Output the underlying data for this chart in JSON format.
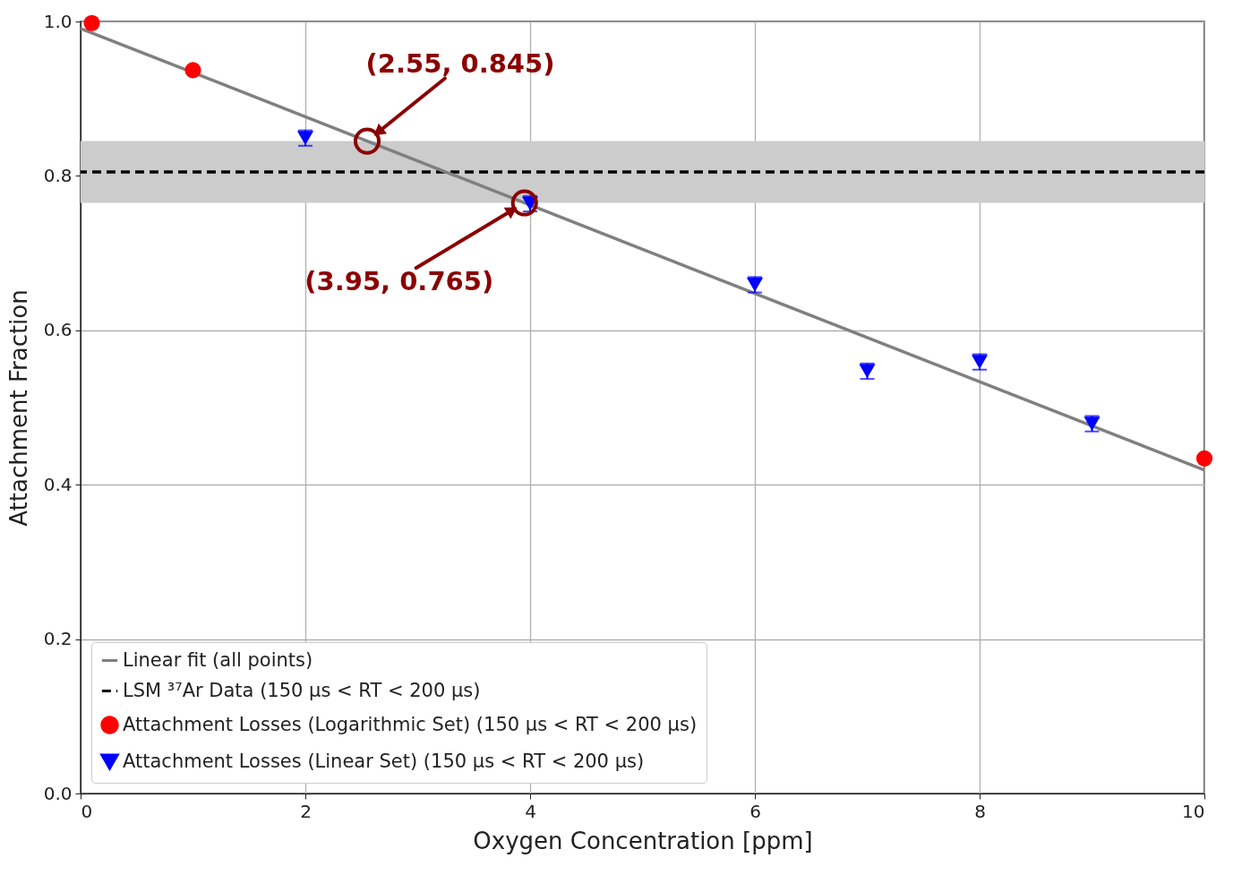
{
  "chart_data": {
    "type": "scatter",
    "xlabel": "Oxygen Concentration [ppm]",
    "ylabel": "Attachment Fraction",
    "series": [
      {
        "name": "Linear fit (all points)",
        "type": "line",
        "color": "#808080",
        "x": [
          0,
          10
        ],
        "values": [
          0.991,
          0.419
        ]
      },
      {
        "name": "Attachment Losses (Logarithmic Set) (150 µs < RT < 200 µs)",
        "marker": "circle",
        "color": "#ff0000",
        "x": [
          0.1,
          1,
          10
        ],
        "values": [
          0.998,
          0.937,
          0.434
        ]
      },
      {
        "name": "Attachment Losses (Linear Set) (150 µs < RT < 200 µs)",
        "marker": "triangle",
        "color": "#0000ff",
        "x": [
          2,
          4,
          6,
          7,
          8,
          9
        ],
        "values": [
          0.849,
          0.764,
          0.659,
          0.547,
          0.559,
          0.479
        ],
        "errors": [
          0.01,
          0.01,
          0.01,
          0.01,
          0.01,
          0.01
        ]
      }
    ],
    "ref_lines": [
      {
        "axis": "y",
        "value": 0.805,
        "label": "LSM ³⁷Ar Data (150 µs < RT < 200 µs)",
        "color": "#000000",
        "line_style": "dashed"
      }
    ],
    "bands": [
      {
        "axis": "y",
        "from": 0.765,
        "to": 0.845,
        "color": "#cccccc"
      }
    ],
    "annotations": [
      {
        "text": "(2.55, 0.845)",
        "x": 2.55,
        "y": 0.845
      },
      {
        "text": "(3.95, 0.765)",
        "x": 3.95,
        "y": 0.765
      }
    ],
    "xlim": [
      0,
      10
    ],
    "ylim": [
      0,
      1.0
    ],
    "xticks": [
      0,
      2,
      4,
      6,
      8,
      10
    ],
    "yticks": [
      {
        "value": 0,
        "label": "0.0"
      },
      {
        "value": 0.2,
        "label": "0.2"
      },
      {
        "value": 0.4,
        "label": "0.4"
      },
      {
        "value": 0.6,
        "label": "0.6"
      },
      {
        "value": 0.8,
        "label": "0.8"
      },
      {
        "value": 1.0,
        "label": "1.0"
      }
    ],
    "grid": true,
    "legend": "bottom left"
  }
}
